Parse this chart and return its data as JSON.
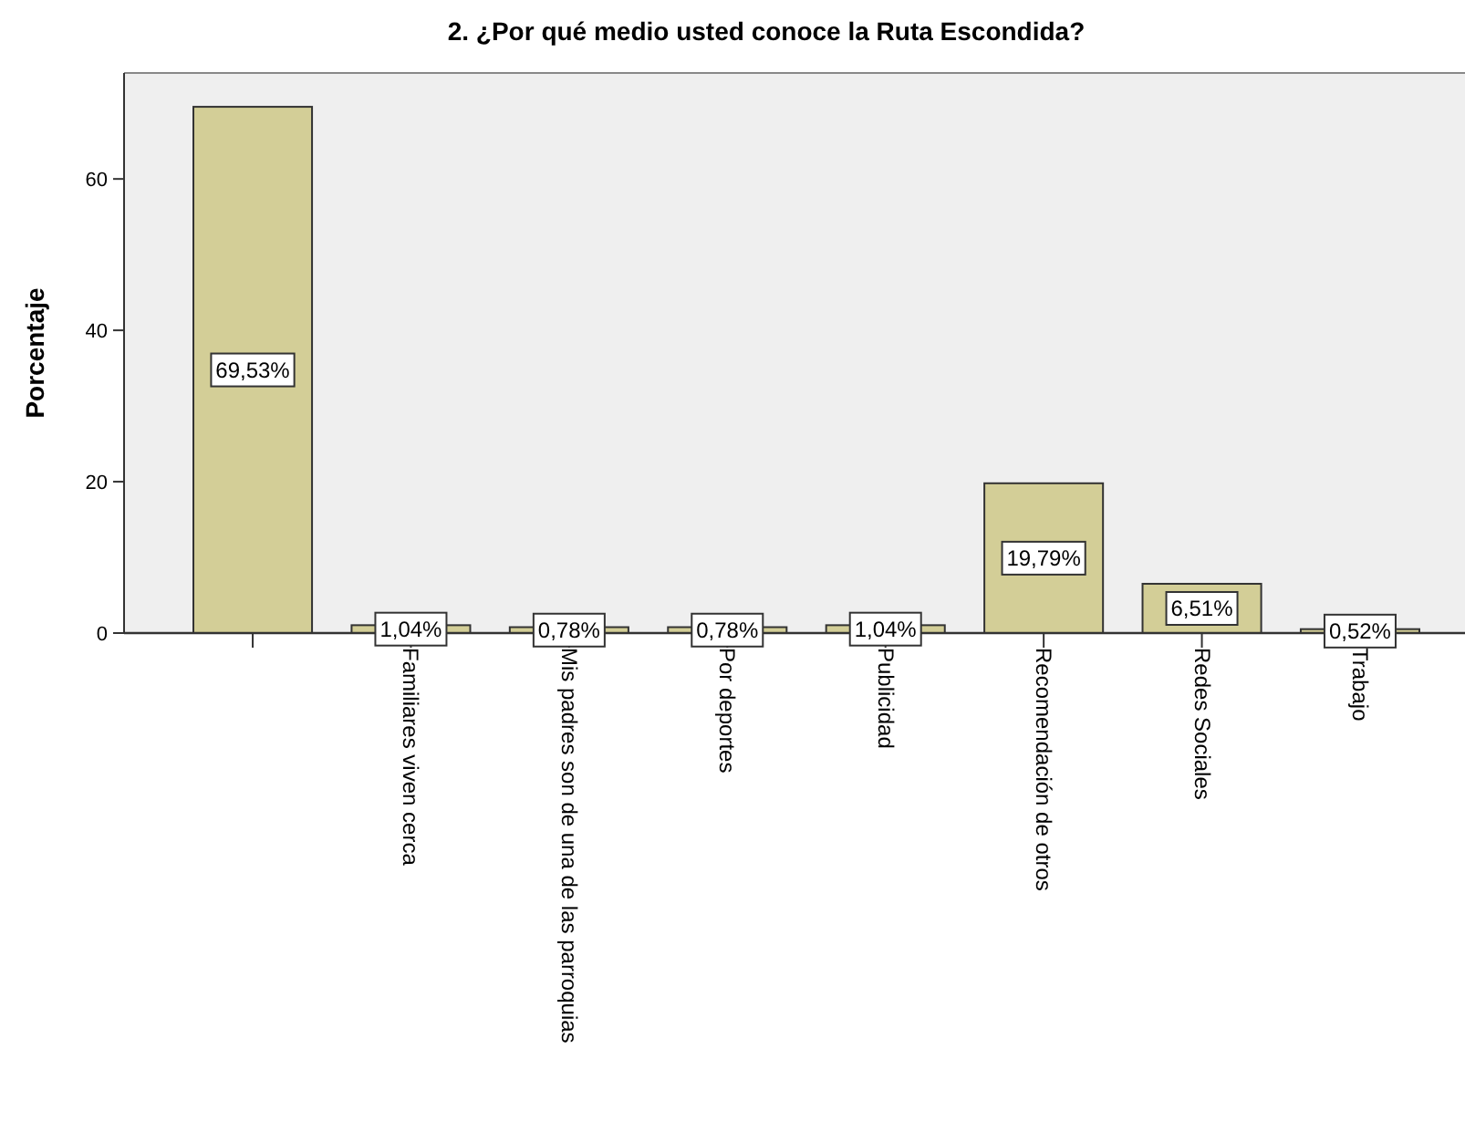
{
  "chart_data": {
    "type": "bar",
    "title": "2. ¿Por qué medio usted conoce la Ruta Escondida?",
    "ylabel": "Porcentaje",
    "categories": [
      null,
      "Familiares viven cerca",
      "Mis padres son de una de las parroquias",
      "Por deportes",
      "Publicidad",
      "Recomendación de otros",
      "Redes Sociales",
      "Trabajo"
    ],
    "values": [
      69.53,
      1.04,
      0.78,
      0.78,
      1.04,
      19.79,
      6.51,
      0.52
    ],
    "value_labels": [
      "69,53%",
      "1,04%",
      "0,78%",
      "0,78%",
      "1,04%",
      "19,79%",
      "6,51%",
      "0,52%"
    ],
    "color": "#d3ce97",
    "ylim": [
      0,
      74
    ],
    "yticks": [
      0,
      20,
      40,
      60
    ],
    "grid": false
  }
}
